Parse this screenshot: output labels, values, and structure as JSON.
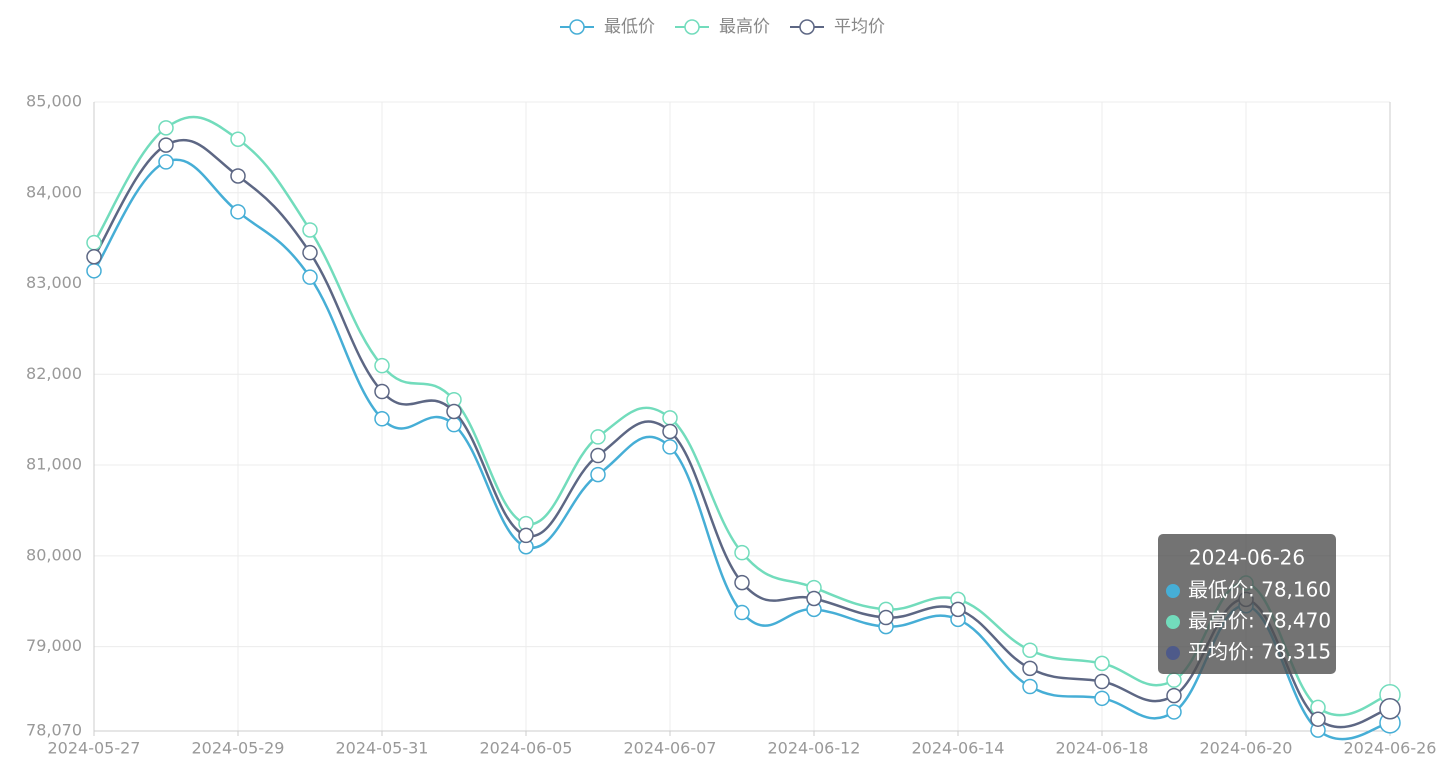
{
  "chart_data": {
    "type": "line",
    "categories": [
      "2024-05-27",
      null,
      "2024-05-29",
      null,
      "2024-05-31",
      null,
      "2024-06-05",
      null,
      "2024-06-07",
      null,
      "2024-06-12",
      null,
      "2024-06-14",
      null,
      "2024-06-18",
      null,
      "2024-06-20",
      null,
      "2024-06-26"
    ],
    "series": [
      {
        "name": "最低价",
        "color": "#46aed6",
        "values": [
          83140,
          84340,
          83790,
          83070,
          81510,
          81445,
          80100,
          80895,
          81200,
          79375,
          79410,
          79220,
          79300,
          78560,
          78430,
          78280,
          79450,
          78080,
          78160
        ]
      },
      {
        "name": "最高价",
        "color": "#72dcbc",
        "values": [
          83450,
          84715,
          84590,
          83590,
          82095,
          81720,
          80355,
          81310,
          81520,
          80035,
          79650,
          79410,
          79520,
          78960,
          78815,
          78630,
          79700,
          78330,
          78470
        ]
      },
      {
        "name": "平均价",
        "color": "#5d6784",
        "values": [
          83295,
          84525,
          84185,
          83340,
          81810,
          81590,
          80225,
          81105,
          81370,
          79705,
          79530,
          79320,
          79410,
          78760,
          78615,
          78460,
          79520,
          78200,
          78315
        ]
      }
    ],
    "ylim": [
      78070,
      85000
    ],
    "yticks": [
      {
        "value": 78070,
        "label": "78,070"
      },
      {
        "value": 79000,
        "label": "79,000"
      },
      {
        "value": 80000,
        "label": "80,000"
      },
      {
        "value": 81000,
        "label": "81,000"
      },
      {
        "value": 82000,
        "label": "82,000"
      },
      {
        "value": 83000,
        "label": "83,000"
      },
      {
        "value": 84000,
        "label": "84,000"
      },
      {
        "value": 85000,
        "label": "85,000"
      }
    ],
    "grid": true,
    "legend": "top",
    "tooltip": {
      "title": "2024-06-26",
      "items": [
        "最低价: 78,160",
        "最高价: 78,470",
        "平均价: 78,315"
      ],
      "colors": [
        "#46aed6",
        "#72dcbc",
        "#4e5a8a"
      ]
    }
  }
}
